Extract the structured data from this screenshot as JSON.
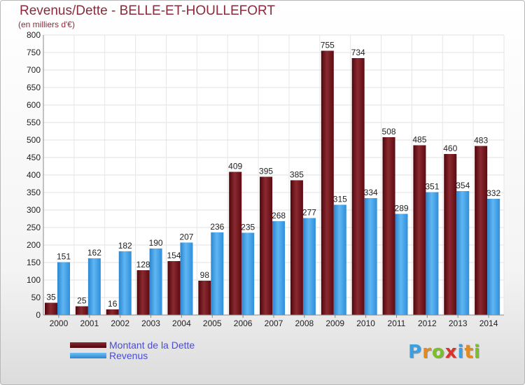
{
  "title": "Revenus/Dette - BELLE-ET-HOULLEFORT",
  "subtitle": "(en milliers d'€)",
  "chart_data": {
    "type": "bar",
    "categories": [
      "2000",
      "2001",
      "2002",
      "2003",
      "2004",
      "2005",
      "2006",
      "2007",
      "2008",
      "2009",
      "2010",
      "2011",
      "2012",
      "2013",
      "2014"
    ],
    "series": [
      {
        "name": "Montant de la Dette",
        "color": "#6e0f17",
        "values": [
          35,
          25,
          16,
          128,
          154,
          98,
          409,
          395,
          385,
          755,
          734,
          508,
          485,
          460,
          483
        ]
      },
      {
        "name": "Revenus",
        "color": "#3a9be6",
        "values": [
          151,
          162,
          182,
          190,
          207,
          236,
          235,
          268,
          277,
          315,
          334,
          289,
          351,
          354,
          332
        ]
      }
    ],
    "yticks": [
      0,
      50,
      100,
      150,
      200,
      250,
      300,
      350,
      400,
      450,
      500,
      550,
      600,
      650,
      700,
      750,
      800
    ],
    "ylim": [
      0,
      800
    ],
    "grid": true,
    "legend": "bottom-left"
  },
  "legend": [
    {
      "label": "Montant de la Dette",
      "color": "#6e0f17"
    },
    {
      "label": "Revenus",
      "color": "#3a9be6"
    }
  ],
  "brand": {
    "letters": [
      {
        "ch": "P",
        "color": "#3aa0e0"
      },
      {
        "ch": "r",
        "color": "#e58a1e"
      },
      {
        "ch": "o",
        "color": "#7cbf2b"
      },
      {
        "ch": "x",
        "color": "#d8342c"
      },
      {
        "ch": "i",
        "color": "#3aa0e0"
      },
      {
        "ch": "t",
        "color": "#e58a1e"
      },
      {
        "ch": "i",
        "color": "#7cbf2b"
      }
    ]
  }
}
